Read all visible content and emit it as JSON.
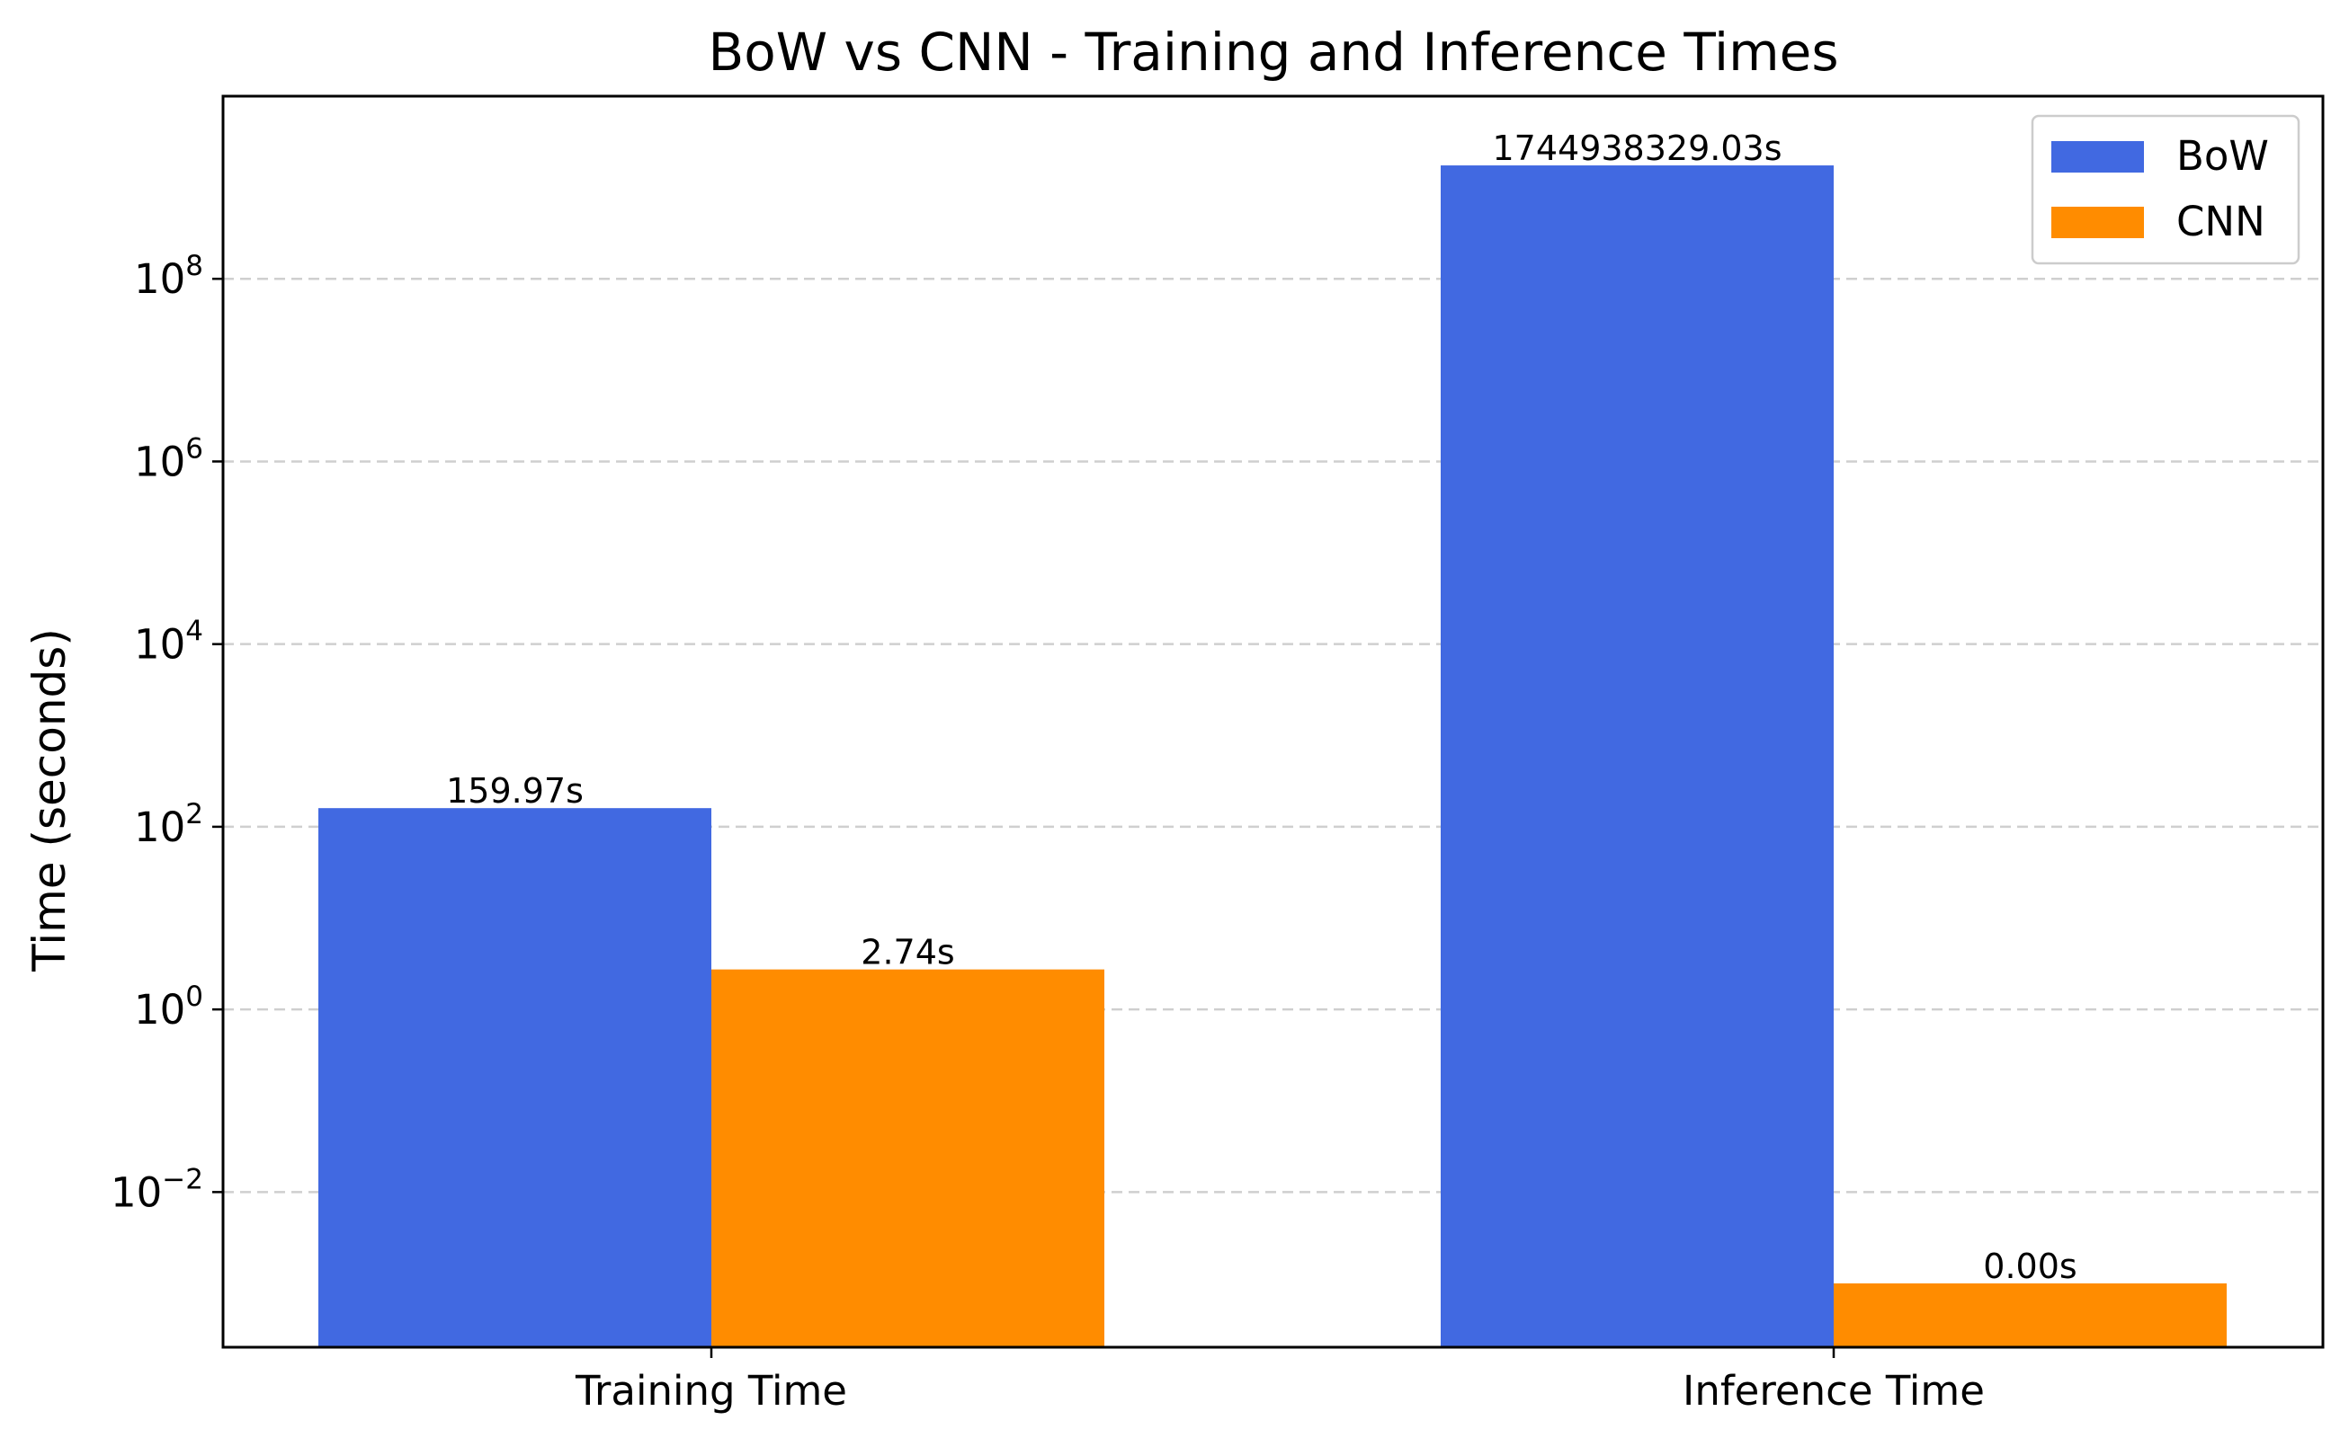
{
  "chart_data": {
    "type": "bar",
    "title": "BoW vs CNN - Training and Inference Times",
    "xlabel": "",
    "ylabel": "Time (seconds)",
    "yscale": "log",
    "ylim": [
      0.0002,
      10000000000
    ],
    "yticks": [
      {
        "value": 0.01,
        "base": "10",
        "exp": "−2"
      },
      {
        "value": 1,
        "base": "10",
        "exp": "0"
      },
      {
        "value": 100,
        "base": "10",
        "exp": "2"
      },
      {
        "value": 10000,
        "base": "10",
        "exp": "4"
      },
      {
        "value": 1000000,
        "base": "10",
        "exp": "6"
      },
      {
        "value": 100000000,
        "base": "10",
        "exp": "8"
      }
    ],
    "grid": "y-dashed",
    "categories": [
      "Training Time",
      "Inference Time"
    ],
    "series": [
      {
        "name": "BoW",
        "color": "#4169E1",
        "values": [
          159.97,
          1744938329.03
        ],
        "labels": [
          "159.97s",
          "1744938329.03s"
        ]
      },
      {
        "name": "CNN",
        "color": "#FF8C00",
        "values": [
          2.74,
          0.001
        ],
        "labels": [
          "2.74s",
          "0.00s"
        ]
      }
    ],
    "legend": "top-right"
  }
}
